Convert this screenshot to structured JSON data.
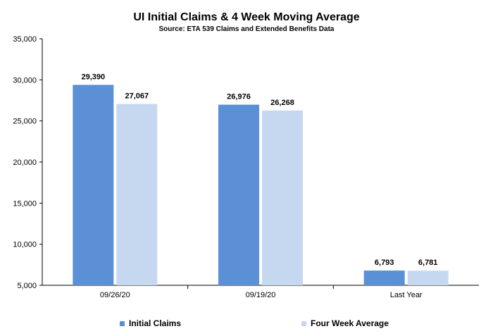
{
  "chart_data": {
    "type": "bar",
    "title": "UI Initial Claims &  4 Week Moving Average",
    "subtitle": "Source: ETA 539 Claims and Extended Benefits Data",
    "categories": [
      "09/26/20",
      "09/19/20",
      "Last Year"
    ],
    "series": [
      {
        "name": "Initial Claims",
        "color": "#5b8fd6",
        "values": [
          29390,
          26976,
          6793
        ]
      },
      {
        "name": "Four Week Average",
        "color": "#c6d8f0",
        "values": [
          27067,
          26268,
          6781
        ]
      }
    ],
    "data_labels": [
      [
        "29,390",
        "26,976",
        "6,793"
      ],
      [
        "27,067",
        "26,268",
        "6,781"
      ]
    ],
    "xlabel": "",
    "ylabel": "",
    "ylim": [
      5000,
      35000
    ],
    "yticks": [
      5000,
      10000,
      15000,
      20000,
      25000,
      30000,
      35000
    ],
    "ytick_labels": [
      "5,000",
      "10,000",
      "15,000",
      "20,000",
      "25,000",
      "30,000",
      "35,000"
    ],
    "grid": false,
    "legend_position": "bottom"
  }
}
